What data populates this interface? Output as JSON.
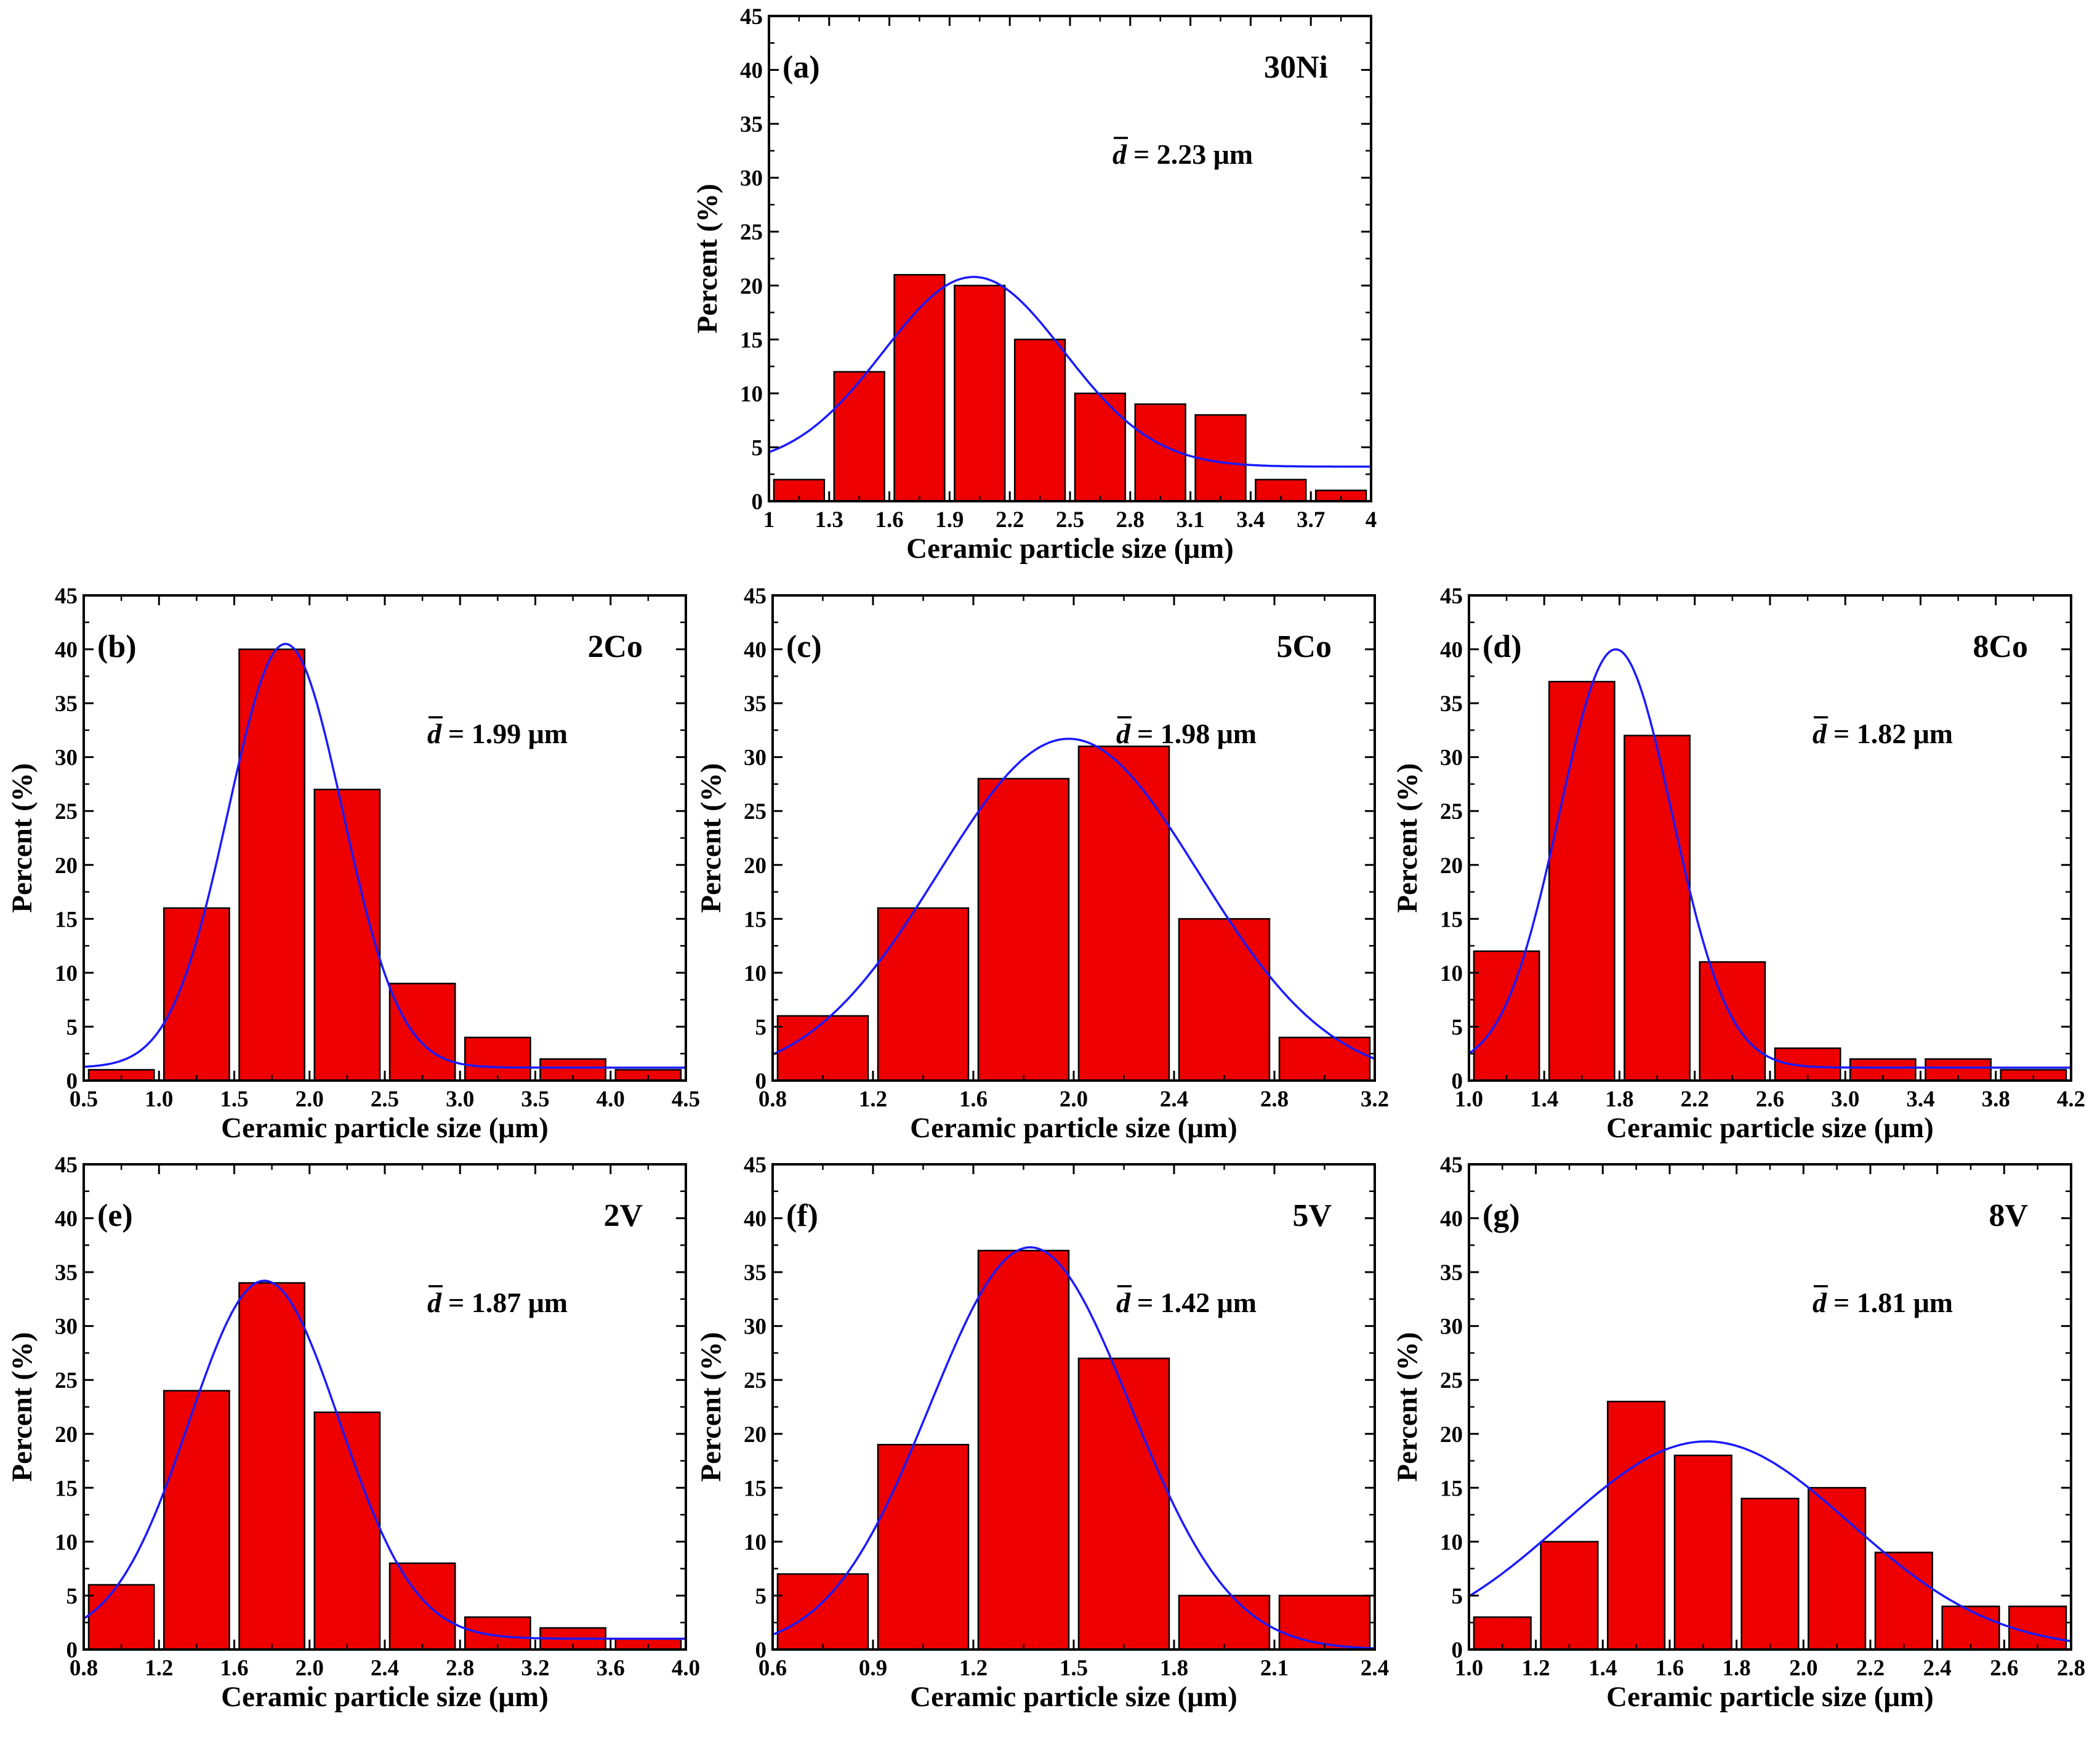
{
  "figure": {
    "colors": {
      "bar": "#ee0000",
      "bar_edge": "#000000",
      "fit": "#1a1aff",
      "axis": "#000000",
      "background": "#ffffff"
    }
  },
  "chart_data": [
    {
      "type": "bar",
      "panel": "(a)",
      "sample": "30Ni",
      "mean_symbol": "d",
      "mean_text": "= 2.23 μm",
      "xlabel": "Ceramic particle size (μm)",
      "ylabel": "Percent (%)",
      "xlim": [
        1,
        4
      ],
      "ylim": [
        0,
        45
      ],
      "xticks": [
        "1",
        "1.3",
        "1.6",
        "1.9",
        "2.2",
        "2.5",
        "2.8",
        "3.1",
        "3.4",
        "3.7",
        "4"
      ],
      "yticks": [
        "0",
        "5",
        "10",
        "15",
        "20",
        "25",
        "30",
        "35",
        "40",
        "45"
      ],
      "bins": [
        [
          1.0,
          1.3
        ],
        [
          1.3,
          1.6
        ],
        [
          1.6,
          1.9
        ],
        [
          1.9,
          2.2
        ],
        [
          2.2,
          2.5
        ],
        [
          2.5,
          2.8
        ],
        [
          2.8,
          3.1
        ],
        [
          3.1,
          3.4
        ],
        [
          3.4,
          3.7
        ],
        [
          3.7,
          4.0
        ]
      ],
      "values": [
        2,
        12,
        21,
        20,
        15,
        10,
        9,
        8,
        2,
        1
      ],
      "fit": {
        "kind": "gaussian",
        "center": 2.02,
        "sigma": 0.45,
        "amplitude": 17.6,
        "baseline": 3.2
      }
    },
    {
      "type": "bar",
      "panel": "(b)",
      "sample": "2Co",
      "mean_symbol": "d",
      "mean_text": "= 1.99 μm",
      "xlabel": "Ceramic particle size (μm)",
      "ylabel": "Percent (%)",
      "xlim": [
        0.5,
        4.5
      ],
      "ylim": [
        0,
        45
      ],
      "xticks": [
        "0.5",
        "1.0",
        "1.5",
        "2.0",
        "2.5",
        "3.0",
        "3.5",
        "4.0",
        "4.5"
      ],
      "yticks": [
        "0",
        "5",
        "10",
        "15",
        "20",
        "25",
        "30",
        "35",
        "40",
        "45"
      ],
      "bins": [
        [
          0.5,
          1.0
        ],
        [
          1.0,
          1.5
        ],
        [
          1.5,
          2.0
        ],
        [
          2.0,
          2.5
        ],
        [
          2.5,
          3.0
        ],
        [
          3.0,
          3.5
        ],
        [
          3.5,
          4.0
        ],
        [
          4.0,
          4.5
        ]
      ],
      "values": [
        1,
        16,
        40,
        27,
        9,
        4,
        2,
        1
      ],
      "fit": {
        "kind": "gaussian",
        "center": 1.84,
        "sigma": 0.38,
        "amplitude": 39.3,
        "baseline": 1.2
      }
    },
    {
      "type": "bar",
      "panel": "(c)",
      "sample": "5Co",
      "mean_symbol": "d",
      "mean_text": "= 1.98 μm",
      "xlabel": "Ceramic particle size (μm)",
      "ylabel": "Percent (%)",
      "xlim": [
        0.8,
        3.2
      ],
      "ylim": [
        0,
        45
      ],
      "xticks": [
        "0.8",
        "1.2",
        "1.6",
        "2.0",
        "2.4",
        "2.8",
        "3.2"
      ],
      "yticks": [
        "0",
        "5",
        "10",
        "15",
        "20",
        "25",
        "30",
        "35",
        "40",
        "45"
      ],
      "bins": [
        [
          0.8,
          1.2
        ],
        [
          1.2,
          1.6
        ],
        [
          1.6,
          2.0
        ],
        [
          2.0,
          2.4
        ],
        [
          2.4,
          2.8
        ],
        [
          2.8,
          3.2
        ]
      ],
      "values": [
        6,
        16,
        28,
        31,
        15,
        4
      ],
      "fit": {
        "kind": "gaussian",
        "center": 1.98,
        "sigma": 0.52,
        "amplitude": 31.7,
        "baseline": 0
      }
    },
    {
      "type": "bar",
      "panel": "(d)",
      "sample": "8Co",
      "mean_symbol": "d",
      "mean_text": "= 1.82 μm",
      "xlabel": "Ceramic particle size (μm)",
      "ylabel": "Percent (%)",
      "xlim": [
        1.0,
        4.2
      ],
      "ylim": [
        0,
        45
      ],
      "xticks": [
        "1.0",
        "1.4",
        "1.8",
        "2.2",
        "2.6",
        "3.0",
        "3.4",
        "3.8",
        "4.2"
      ],
      "yticks": [
        "0",
        "5",
        "10",
        "15",
        "20",
        "25",
        "30",
        "35",
        "40",
        "45"
      ],
      "bins": [
        [
          1.0,
          1.4
        ],
        [
          1.4,
          1.8
        ],
        [
          1.8,
          2.2
        ],
        [
          2.2,
          2.6
        ],
        [
          2.6,
          3.0
        ],
        [
          3.0,
          3.4
        ],
        [
          3.4,
          3.8
        ],
        [
          3.8,
          4.2
        ]
      ],
      "values": [
        12,
        37,
        32,
        11,
        3,
        2,
        2,
        1
      ],
      "fit": {
        "kind": "gaussian",
        "center": 1.78,
        "sigma": 0.3,
        "amplitude": 38.8,
        "baseline": 1.2
      }
    },
    {
      "type": "bar",
      "panel": "(e)",
      "sample": "2V",
      "mean_symbol": "d",
      "mean_text": "= 1.87 μm",
      "xlabel": "Ceramic particle size (μm)",
      "ylabel": "Percent (%)",
      "xlim": [
        0.8,
        4.0
      ],
      "ylim": [
        0,
        45
      ],
      "xticks": [
        "0.8",
        "1.2",
        "1.6",
        "2.0",
        "2.4",
        "2.8",
        "3.2",
        "3.6",
        "4.0"
      ],
      "yticks": [
        "0",
        "5",
        "10",
        "15",
        "20",
        "25",
        "30",
        "35",
        "40",
        "45"
      ],
      "bins": [
        [
          0.8,
          1.2
        ],
        [
          1.2,
          1.6
        ],
        [
          1.6,
          2.0
        ],
        [
          2.0,
          2.4
        ],
        [
          2.4,
          2.8
        ],
        [
          2.8,
          3.2
        ],
        [
          3.2,
          3.6
        ],
        [
          3.6,
          4.0
        ]
      ],
      "values": [
        6,
        24,
        34,
        22,
        8,
        3,
        2,
        1
      ],
      "fit": {
        "kind": "gaussian",
        "center": 1.76,
        "sigma": 0.4,
        "amplitude": 33.2,
        "baseline": 1.0
      }
    },
    {
      "type": "bar",
      "panel": "(f)",
      "sample": "5V",
      "mean_symbol": "d",
      "mean_text": "= 1.42 μm",
      "xlabel": "Ceramic particle size (μm)",
      "ylabel": "Percent (%)",
      "xlim": [
        0.6,
        2.4
      ],
      "ylim": [
        0,
        45
      ],
      "xticks": [
        "0.6",
        "0.9",
        "1.2",
        "1.5",
        "1.8",
        "2.1",
        "2.4"
      ],
      "yticks": [
        "0",
        "5",
        "10",
        "15",
        "20",
        "25",
        "30",
        "35",
        "40",
        "45"
      ],
      "bins": [
        [
          0.6,
          0.9
        ],
        [
          0.9,
          1.2
        ],
        [
          1.2,
          1.5
        ],
        [
          1.5,
          1.8
        ],
        [
          1.8,
          2.1
        ],
        [
          2.1,
          2.4
        ]
      ],
      "values": [
        7,
        19,
        37,
        27,
        5,
        5
      ],
      "fit": {
        "kind": "gaussian",
        "center": 1.37,
        "sigma": 0.3,
        "amplitude": 37.3,
        "baseline": 0
      }
    },
    {
      "type": "bar",
      "panel": "(g)",
      "sample": "8V",
      "mean_symbol": "d",
      "mean_text": "= 1.81 μm",
      "xlabel": "Ceramic particle size (μm)",
      "ylabel": "Percent (%)",
      "xlim": [
        1.0,
        2.8
      ],
      "ylim": [
        0,
        45
      ],
      "xticks": [
        "1.0",
        "1.2",
        "1.4",
        "1.6",
        "1.8",
        "2.0",
        "2.2",
        "2.4",
        "2.6",
        "2.8"
      ],
      "yticks": [
        "0",
        "5",
        "10",
        "15",
        "20",
        "25",
        "30",
        "35",
        "40",
        "45"
      ],
      "bins": [
        [
          1.0,
          1.2
        ],
        [
          1.2,
          1.4
        ],
        [
          1.4,
          1.6
        ],
        [
          1.6,
          1.8
        ],
        [
          1.8,
          2.0
        ],
        [
          2.0,
          2.2
        ],
        [
          2.2,
          2.4
        ],
        [
          2.4,
          2.6
        ],
        [
          2.6,
          2.8
        ]
      ],
      "values": [
        3,
        10,
        23,
        18,
        14,
        15,
        9,
        4,
        4
      ],
      "fit": {
        "kind": "gaussian",
        "center": 1.71,
        "sigma": 0.43,
        "amplitude": 19.3,
        "baseline": 0
      }
    }
  ]
}
